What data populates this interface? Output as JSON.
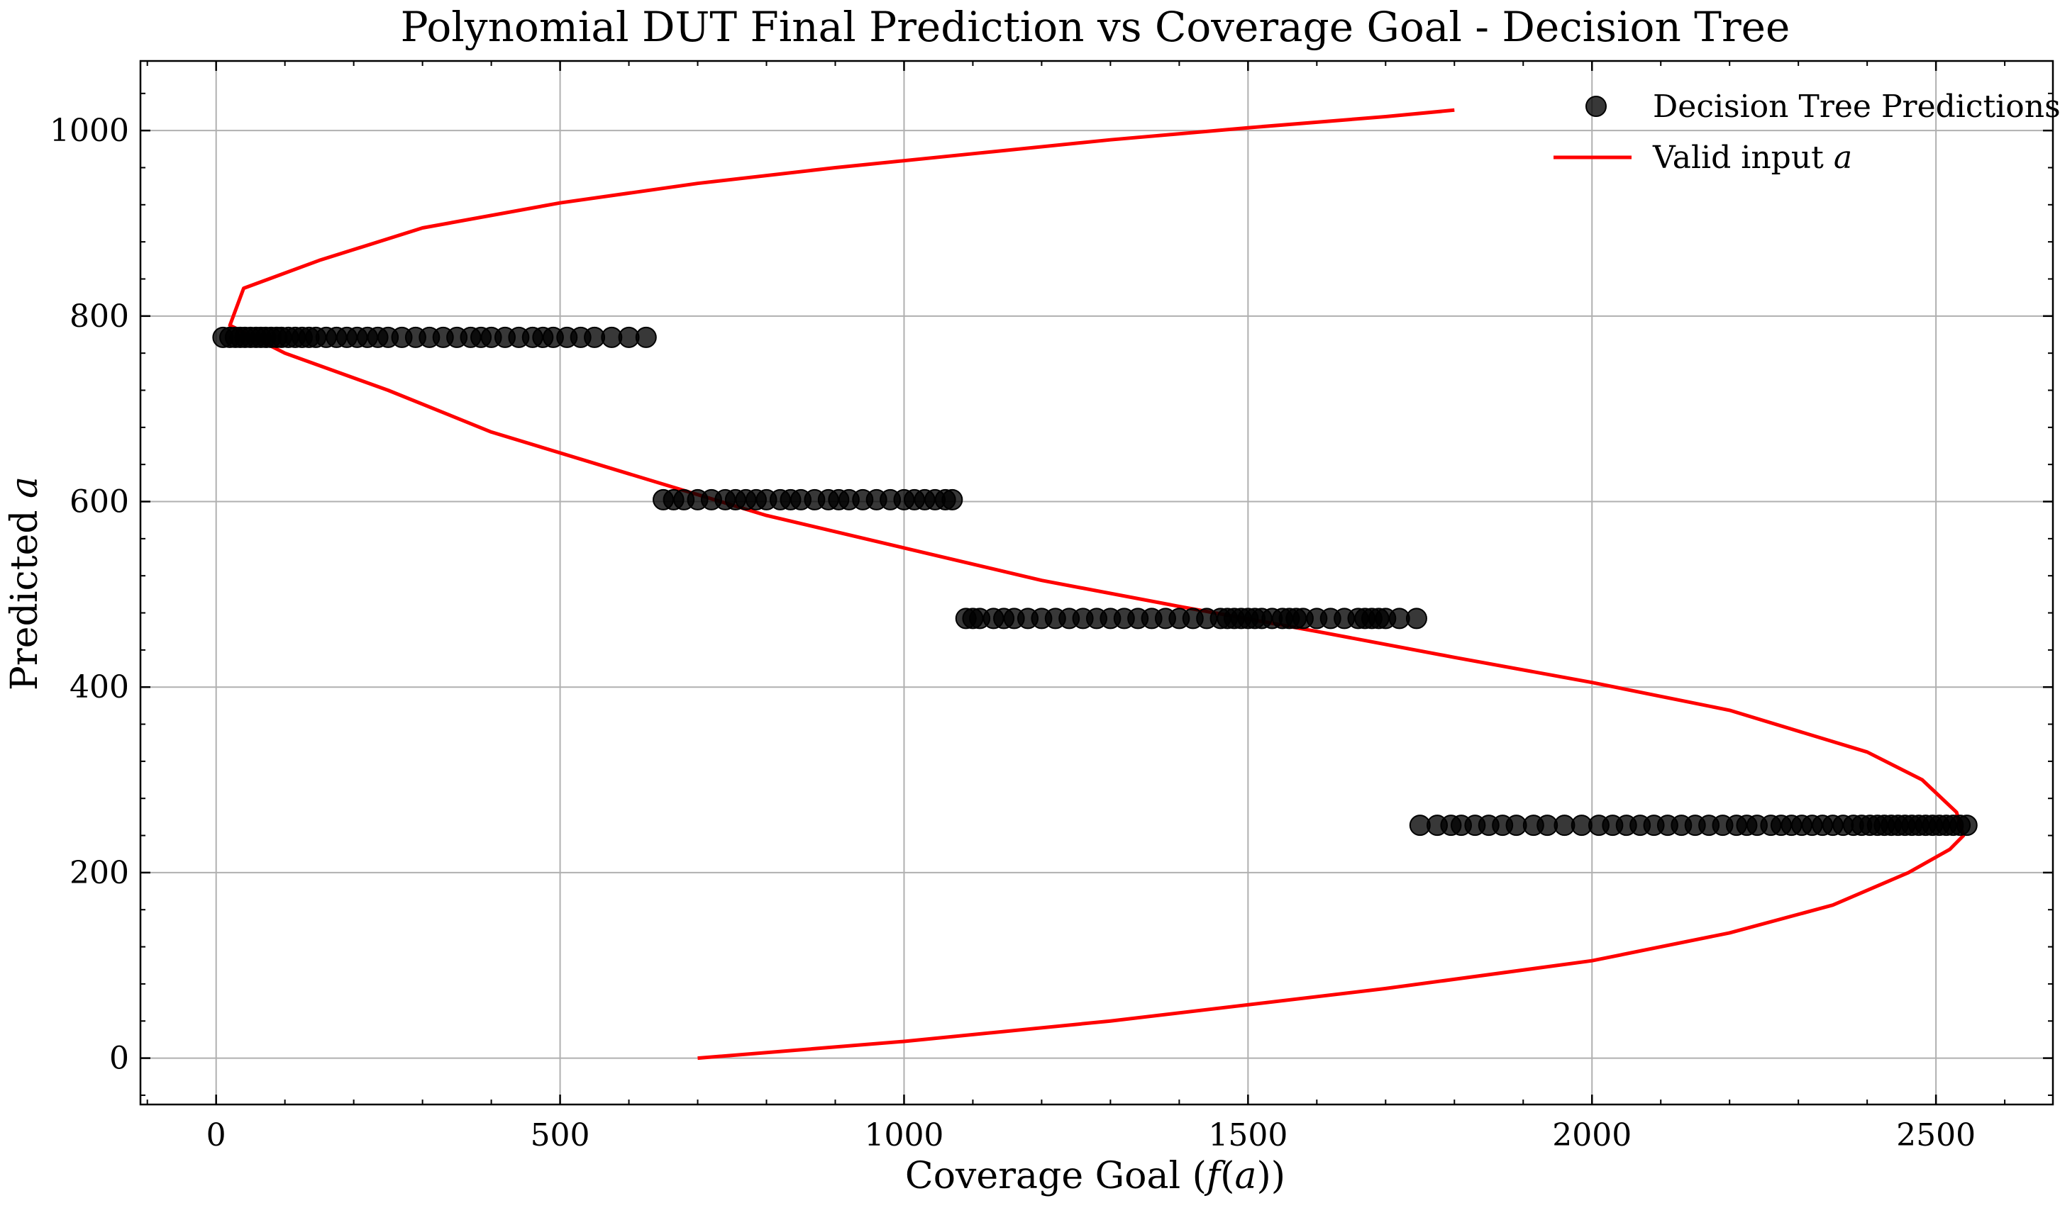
{
  "chart_data": {
    "type": "scatter",
    "title": "Polynomial DUT Final Prediction vs Coverage Goal - Decision Tree",
    "xlabel": "Coverage Goal (f(a))",
    "ylabel": "Predicted a",
    "xlim": [
      -110,
      2670
    ],
    "ylim": [
      -50,
      1075
    ],
    "xticks": [
      0,
      500,
      1000,
      1500,
      2000,
      2500
    ],
    "yticks": [
      0,
      200,
      400,
      600,
      800,
      1000
    ],
    "grid": true,
    "legend": "top-right",
    "legend_entries": [
      "Decision Tree Predictions",
      "Valid input a"
    ],
    "series": [
      {
        "name": "Decision Tree Predictions",
        "kind": "scatter",
        "color": "#000000",
        "groups": [
          {
            "y": 777,
            "x": [
              10,
              20,
              28,
              35,
              42,
              50,
              58,
              65,
              72,
              80,
              88,
              95,
              105,
              115,
              125,
              135,
              145,
              160,
              175,
              190,
              205,
              220,
              235,
              250,
              270,
              290,
              310,
              330,
              350,
              370,
              385,
              400,
              420,
              440,
              460,
              475,
              490,
              510,
              530,
              550,
              575,
              600,
              625
            ]
          },
          {
            "y": 602,
            "x": [
              650,
              665,
              680,
              700,
              720,
              740,
              755,
              770,
              785,
              800,
              820,
              835,
              850,
              870,
              890,
              905,
              920,
              940,
              960,
              980,
              1000,
              1015,
              1030,
              1045,
              1060,
              1070
            ]
          },
          {
            "y": 474,
            "x": [
              1090,
              1100,
              1110,
              1130,
              1145,
              1160,
              1180,
              1200,
              1220,
              1240,
              1260,
              1280,
              1300,
              1320,
              1340,
              1360,
              1380,
              1400,
              1420,
              1440,
              1460,
              1470,
              1480,
              1490,
              1500,
              1510,
              1520,
              1535,
              1550,
              1560,
              1570,
              1580,
              1600,
              1620,
              1640,
              1660,
              1670,
              1680,
              1690,
              1700,
              1720,
              1745
            ]
          },
          {
            "y": 251,
            "x": [
              1750,
              1775,
              1795,
              1810,
              1830,
              1850,
              1870,
              1890,
              1915,
              1935,
              1960,
              1985,
              2010,
              2030,
              2050,
              2070,
              2090,
              2110,
              2130,
              2150,
              2170,
              2190,
              2210,
              2225,
              2240,
              2260,
              2275,
              2290,
              2305,
              2320,
              2335,
              2350,
              2365,
              2380,
              2392,
              2404,
              2415,
              2425,
              2435,
              2445,
              2455,
              2465,
              2475,
              2485,
              2495,
              2505,
              2515,
              2525,
              2535,
              2545
            ]
          }
        ]
      },
      {
        "name": "Valid input a",
        "kind": "line",
        "color": "#ff0000",
        "function": "x = 1e-5*(a-240)^3*... fitted cubic in a",
        "x_at_a": [
          [
            700,
            0
          ],
          [
            1000,
            18
          ],
          [
            1300,
            40
          ],
          [
            1700,
            75
          ],
          [
            2000,
            105
          ],
          [
            2200,
            135
          ],
          [
            2350,
            165
          ],
          [
            2460,
            200
          ],
          [
            2520,
            225
          ],
          [
            2540,
            240
          ],
          [
            2530,
            265
          ],
          [
            2480,
            300
          ],
          [
            2400,
            330
          ],
          [
            2200,
            375
          ],
          [
            2000,
            405
          ],
          [
            1800,
            432
          ],
          [
            1600,
            460
          ],
          [
            1400,
            487
          ],
          [
            1200,
            515
          ],
          [
            1000,
            550
          ],
          [
            800,
            585
          ],
          [
            600,
            630
          ],
          [
            400,
            675
          ],
          [
            250,
            720
          ],
          [
            100,
            760
          ],
          [
            20,
            790
          ],
          [
            40,
            830
          ],
          [
            150,
            860
          ],
          [
            300,
            895
          ],
          [
            500,
            922
          ],
          [
            700,
            943
          ],
          [
            900,
            960
          ],
          [
            1100,
            975
          ],
          [
            1300,
            990
          ],
          [
            1500,
            1003
          ],
          [
            1700,
            1015
          ],
          [
            1800,
            1022
          ]
        ]
      }
    ]
  },
  "colors": {
    "grid": "#b0b0b0",
    "axes": "#000000",
    "line": "#ff0000",
    "points": "#000000"
  }
}
